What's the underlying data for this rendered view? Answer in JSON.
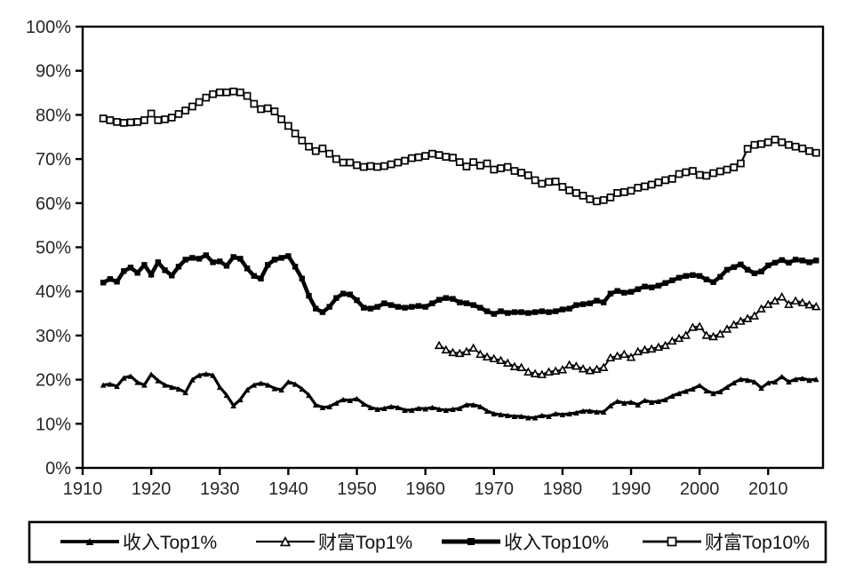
{
  "chart_data": {
    "type": "line",
    "title": "",
    "background": "#ffffff",
    "line_color": "#000000",
    "text_color": "#262626",
    "grid": false,
    "legend_position": "bottom",
    "x_axis": {
      "range": [
        1910,
        2018
      ],
      "tick_years": [
        1910,
        1920,
        1930,
        1940,
        1950,
        1960,
        1970,
        1980,
        1990,
        2000,
        2010
      ],
      "tick_labels": [
        "1910",
        "1920",
        "1930",
        "1940",
        "1950",
        "1960",
        "1970",
        "1980",
        "1990",
        "2000",
        "2010"
      ]
    },
    "y_axis": {
      "range": [
        0,
        100
      ],
      "tick_values": [
        0,
        10,
        20,
        30,
        40,
        50,
        60,
        70,
        80,
        90,
        100
      ],
      "tick_labels": [
        "0%",
        "10%",
        "20%",
        "30%",
        "40%",
        "50%",
        "60%",
        "70%",
        "80%",
        "90%",
        "100%"
      ]
    },
    "series": [
      {
        "name": "收入Top1%",
        "marker": "triangle-filled",
        "start_year": 1913,
        "values": [
          18.8,
          19.0,
          18.5,
          20.4,
          20.8,
          19.4,
          18.8,
          21.2,
          19.8,
          18.8,
          18.3,
          17.9,
          17.1,
          20.0,
          21.0,
          21.3,
          21.0,
          18.3,
          16.5,
          14.1,
          15.5,
          17.7,
          18.8,
          19.2,
          18.8,
          18.0,
          17.7,
          19.5,
          19.0,
          17.9,
          16.5,
          14.3,
          13.7,
          13.9,
          14.7,
          15.5,
          15.3,
          15.7,
          14.5,
          13.7,
          13.3,
          13.5,
          13.9,
          13.7,
          13.1,
          13.1,
          13.5,
          13.4,
          13.7,
          13.3,
          13.1,
          13.3,
          13.5,
          14.3,
          14.3,
          13.9,
          12.9,
          12.3,
          12.1,
          11.9,
          11.7,
          11.7,
          11.4,
          11.4,
          11.9,
          11.7,
          12.3,
          12.1,
          12.3,
          12.5,
          12.9,
          12.9,
          12.7,
          12.7,
          14.1,
          15.1,
          14.7,
          14.9,
          14.3,
          15.3,
          14.9,
          15.1,
          15.5,
          16.3,
          16.9,
          17.4,
          17.9,
          18.7,
          17.5,
          16.9,
          17.3,
          18.3,
          19.3,
          20.1,
          19.9,
          19.5,
          18.1,
          19.3,
          19.5,
          20.7,
          19.5,
          20.1,
          20.3,
          19.9,
          20.1
        ]
      },
      {
        "name": "财富Top1%",
        "marker": "triangle-open",
        "start_year": 1962,
        "values": [
          27.8,
          26.8,
          26.2,
          26.0,
          26.4,
          27.2,
          25.8,
          25.2,
          24.8,
          24.4,
          23.8,
          23.0,
          22.8,
          21.8,
          21.4,
          21.2,
          21.8,
          22.0,
          22.3,
          23.4,
          23.1,
          22.5,
          22.1,
          22.4,
          22.8,
          25.0,
          25.4,
          25.8,
          25.1,
          26.4,
          26.8,
          27.0,
          27.4,
          27.8,
          28.8,
          29.4,
          30.1,
          31.9,
          32.1,
          30.1,
          29.8,
          30.4,
          31.5,
          32.5,
          33.3,
          33.9,
          34.5,
          36.1,
          37.1,
          37.9,
          38.8,
          37.1,
          37.9,
          37.5,
          37.0,
          36.6
        ]
      },
      {
        "name": "收入Top10%",
        "marker": "square-filled",
        "start_year": 1913,
        "values": [
          42.0,
          42.8,
          42.2,
          44.6,
          45.4,
          44.2,
          46.0,
          43.8,
          46.6,
          44.8,
          43.6,
          45.6,
          47.2,
          47.6,
          47.4,
          48.2,
          46.6,
          46.8,
          45.8,
          47.8,
          47.4,
          45.2,
          43.5,
          42.9,
          46.0,
          47.2,
          47.6,
          48.0,
          45.6,
          42.9,
          39.0,
          36.1,
          35.3,
          36.5,
          38.5,
          39.5,
          39.3,
          38.0,
          36.3,
          36.1,
          36.5,
          37.3,
          36.9,
          36.5,
          36.3,
          36.5,
          36.7,
          36.5,
          37.3,
          38.1,
          38.5,
          38.3,
          37.5,
          37.3,
          36.9,
          36.3,
          35.5,
          34.9,
          35.5,
          35.1,
          35.3,
          35.3,
          35.1,
          35.3,
          35.5,
          35.3,
          35.5,
          35.9,
          36.1,
          36.9,
          37.1,
          37.3,
          37.9,
          37.5,
          39.5,
          40.1,
          39.7,
          39.9,
          40.5,
          41.1,
          40.9,
          41.3,
          41.9,
          42.5,
          43.1,
          43.5,
          43.7,
          43.5,
          42.7,
          42.1,
          43.3,
          44.9,
          45.5,
          46.1,
          44.9,
          44.1,
          44.5,
          45.9,
          46.5,
          47.1,
          46.5,
          47.2,
          47.0,
          46.6,
          47.0
        ]
      },
      {
        "name": "财富Top10%",
        "marker": "square-open",
        "start_year": 1913,
        "values": [
          79.2,
          78.8,
          78.4,
          78.2,
          78.3,
          78.4,
          78.8,
          80.3,
          78.8,
          79.0,
          79.4,
          80.2,
          81.0,
          81.9,
          82.9,
          83.9,
          84.7,
          85.1,
          85.1,
          85.3,
          85.1,
          84.3,
          82.5,
          81.3,
          81.5,
          80.8,
          79.0,
          77.5,
          75.8,
          74.2,
          72.8,
          71.8,
          72.4,
          71.2,
          70.0,
          69.2,
          69.2,
          68.6,
          68.2,
          68.4,
          68.2,
          68.4,
          68.8,
          69.2,
          69.6,
          70.2,
          70.4,
          70.7,
          71.2,
          70.9,
          70.5,
          70.3,
          69.3,
          68.3,
          69.3,
          68.5,
          69.0,
          67.6,
          67.9,
          68.2,
          67.3,
          66.9,
          66.3,
          65.2,
          64.4,
          64.8,
          64.9,
          63.7,
          62.9,
          62.3,
          61.7,
          60.9,
          60.4,
          60.7,
          61.3,
          62.3,
          62.5,
          62.8,
          63.5,
          63.8,
          64.2,
          64.7,
          65.2,
          65.5,
          66.6,
          67.0,
          67.3,
          66.4,
          66.2,
          66.8,
          67.2,
          67.6,
          68.1,
          69.0,
          72.3,
          73.2,
          73.4,
          73.8,
          74.4,
          73.8,
          73.2,
          72.8,
          72.4,
          71.8,
          71.4
        ]
      }
    ]
  }
}
